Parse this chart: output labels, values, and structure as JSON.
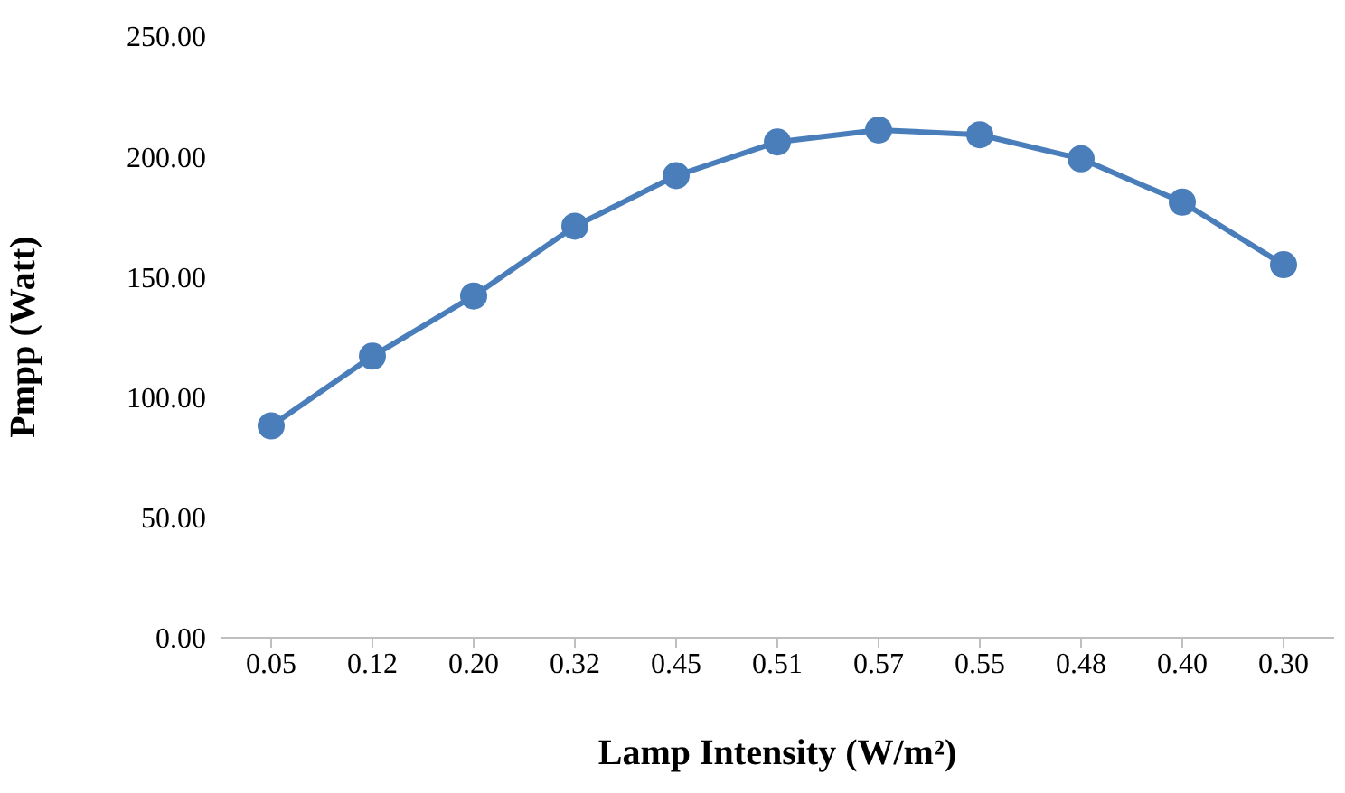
{
  "chart_data": {
    "type": "line",
    "xlabel": "Lamp Intensity (W/m²)",
    "ylabel": "Pmpp (Watt)",
    "categories": [
      "0.05",
      "0.12",
      "0.20",
      "0.32",
      "0.45",
      "0.51",
      "0.57",
      "0.55",
      "0.48",
      "0.40",
      "0.30"
    ],
    "series": [
      {
        "color": "#4a7ebb",
        "values": [
          88,
          117,
          142,
          171,
          192,
          206,
          211,
          209,
          199,
          181,
          155
        ]
      }
    ],
    "ylim": [
      0,
      250
    ],
    "yticks": [
      {
        "value": 0,
        "label": "0.00"
      },
      {
        "value": 50,
        "label": "50.00"
      },
      {
        "value": 100,
        "label": "100.00"
      },
      {
        "value": 150,
        "label": "150.00"
      },
      {
        "value": 200,
        "label": "200.00"
      },
      {
        "value": 250,
        "label": "250.00"
      }
    ],
    "grid": false,
    "legend": false,
    "marker": "circle",
    "line_style": "solid"
  }
}
